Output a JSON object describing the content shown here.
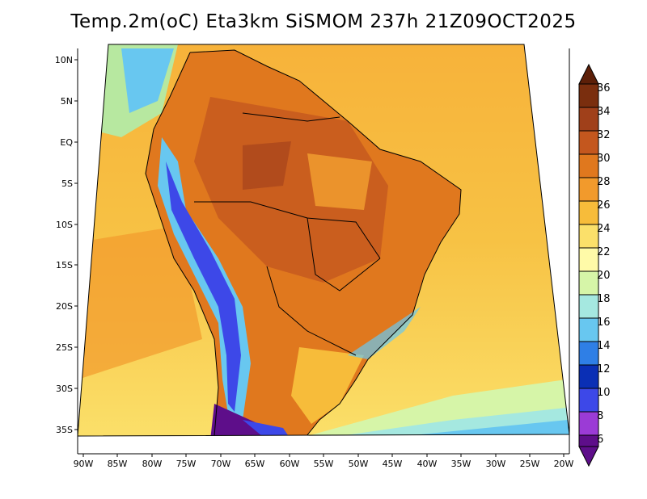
{
  "title": "Temp.2m(oC) Eta3km SiSMOM 237h 21Z09OCT2025",
  "lat_labels": [
    "10N",
    "5N",
    "EQ",
    "5S",
    "10S",
    "15S",
    "20S",
    "25S",
    "30S",
    "35S"
  ],
  "lon_labels": [
    "90W",
    "85W",
    "80W",
    "75W",
    "70W",
    "65W",
    "60W",
    "55W",
    "50W",
    "45W",
    "40W",
    "35W",
    "30W",
    "25W",
    "20W"
  ],
  "colorbar": {
    "labels": [
      "36",
      "34",
      "32",
      "30",
      "28",
      "26",
      "24",
      "22",
      "20",
      "18",
      "16",
      "14",
      "12",
      "10",
      "8",
      "6"
    ],
    "colors": [
      "#7a2e0e",
      "#a0401a",
      "#c4571e",
      "#e0781e",
      "#f29a2c",
      "#f7bc3a",
      "#fbe06a",
      "#fffaa8",
      "#d6f5a8",
      "#a5e8e0",
      "#68c7f0",
      "#2f7fe6",
      "#0a2fb5",
      "#3d48e8",
      "#9b3bd6",
      "#5e0e8a"
    ]
  }
}
